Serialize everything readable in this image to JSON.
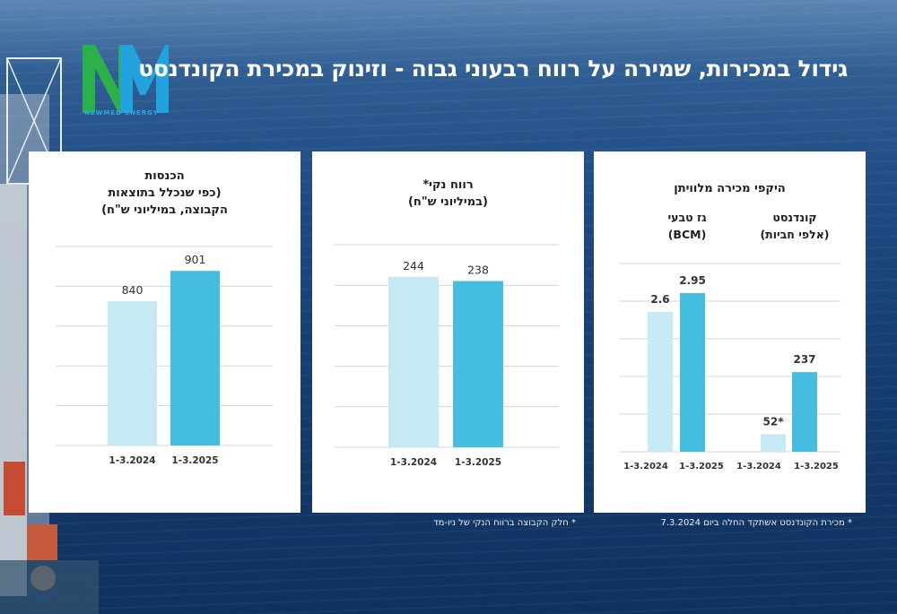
{
  "header": {
    "title": "גידול במכירות, שמירה על רווח רבעוני גבוה - וזינוק במכירת הקונדנסט",
    "logo_text": "NEWMED ENERGY"
  },
  "colors": {
    "bar_2024": "#c5eaf4",
    "bar_2025": "#45bde0",
    "grid": "#d4d4d4",
    "text": "#333333"
  },
  "panels": {
    "revenue": {
      "title_lines": [
        "הכנסות",
        "(כפי שנכלל בתוצאות",
        "הקבוצה, במיליוני ש\"ח)"
      ]
    },
    "profit": {
      "title_lines": [
        "רווח נקי*",
        "(במיליוני ש\"ח)"
      ],
      "footnote": "* חלק הקבוצה ברווח הנקי של ניו-מד"
    },
    "sales": {
      "title": "היקפי מכירה מלוויתן",
      "gas_lines": [
        "גז טבעי",
        "(BCM)"
      ],
      "condensate_lines": [
        "קונדנסט",
        "(אלפי חביות)"
      ],
      "footnote": "* מכירת הקונדנסט אשתקד החלה ביום 7.3.2024"
    }
  },
  "chart_data": [
    {
      "type": "bar",
      "title": "הכנסות (כפי שנכלל בתוצאות הקבוצה, במיליוני ש\"ח)",
      "categories": [
        "1-3.2024",
        "1-3.2025"
      ],
      "values": [
        840,
        901
      ],
      "value_labels": [
        "840",
        "901"
      ],
      "ylim": [
        550,
        950
      ],
      "grid": true,
      "axis_labels_visible": false
    },
    {
      "type": "bar",
      "title": "רווח נקי* (במיליוני ש\"ח)",
      "categories": [
        "1-3.2024",
        "1-3.2025"
      ],
      "values": [
        244,
        238
      ],
      "value_labels": [
        "244",
        "238"
      ],
      "ylim": [
        0,
        290
      ],
      "grid": true,
      "axis_labels_visible": false
    },
    {
      "type": "bar",
      "title": "היקפי מכירה מלוויתן",
      "groups": [
        {
          "name": "גז טבעי (BCM)",
          "categories": [
            "1-3.2024",
            "1-3.2025"
          ],
          "values": [
            2.6,
            2.95
          ],
          "value_labels": [
            "2.6",
            "2.95"
          ]
        },
        {
          "name": "קונדנסט (אלפי חביות)",
          "categories": [
            "1-3.2024",
            "1-3.2025"
          ],
          "values": [
            52,
            237
          ],
          "value_labels": [
            "52*",
            "237"
          ]
        }
      ],
      "grid": true,
      "axis_labels_visible": false
    }
  ]
}
